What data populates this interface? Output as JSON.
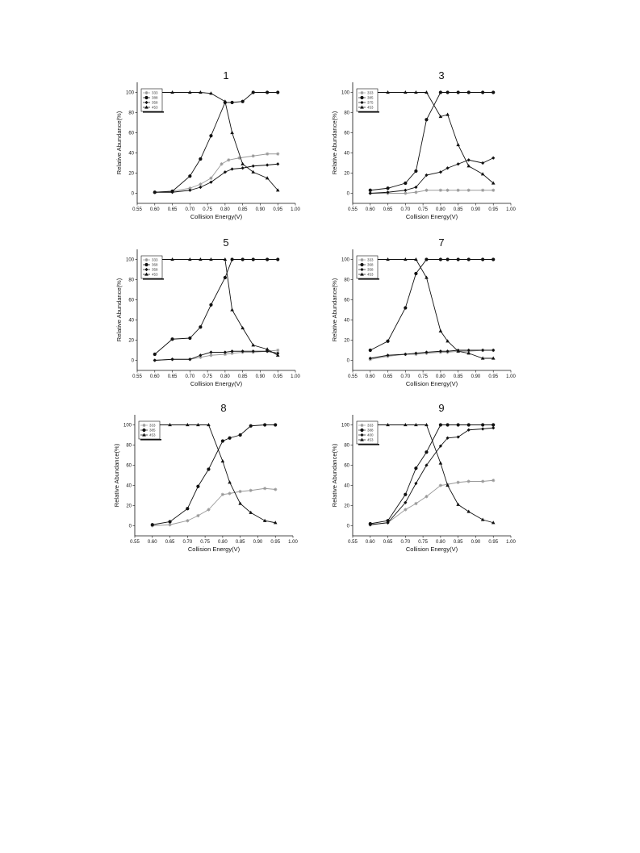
{
  "charts": [
    {
      "title": "1",
      "xlabel": "Collision Energy(V)",
      "ylabel": "Relative Abundance(%)",
      "xlim": [
        0.55,
        1.0
      ],
      "ylim": [
        -10,
        110
      ],
      "xticks": [
        "0.55",
        "0.60",
        "0.65",
        "0.70",
        "0.75",
        "0.80",
        "0.85",
        "0.90",
        "0.95",
        "1.00"
      ],
      "yticks": [
        "0",
        "20",
        "40",
        "60",
        "80",
        "100"
      ],
      "legend": [
        "333",
        "388",
        "358",
        "453"
      ],
      "series": [
        {
          "name": "333",
          "color": "#999999",
          "marker": "star",
          "x": [
            0.6,
            0.65,
            0.7,
            0.73,
            0.76,
            0.79,
            0.81,
            0.84,
            0.88,
            0.92,
            0.95
          ],
          "y": [
            1,
            2,
            5,
            9,
            15,
            29,
            33,
            35,
            37,
            39,
            39
          ]
        },
        {
          "name": "388",
          "color": "#111111",
          "marker": "circle",
          "x": [
            0.6,
            0.65,
            0.7,
            0.73,
            0.76,
            0.8,
            0.82,
            0.85,
            0.88,
            0.92,
            0.95
          ],
          "y": [
            1,
            2,
            17,
            34,
            57,
            90,
            90,
            91,
            100,
            100,
            100
          ]
        },
        {
          "name": "358",
          "color": "#111111",
          "marker": "diamond",
          "x": [
            0.6,
            0.65,
            0.7,
            0.73,
            0.76,
            0.8,
            0.82,
            0.85,
            0.88,
            0.92,
            0.95
          ],
          "y": [
            1,
            1,
            3,
            6,
            11,
            21,
            24,
            25,
            27,
            28,
            29
          ]
        },
        {
          "name": "453",
          "color": "#111111",
          "marker": "triangle",
          "x": [
            0.6,
            0.65,
            0.7,
            0.73,
            0.76,
            0.8,
            0.82,
            0.85,
            0.88,
            0.92,
            0.95
          ],
          "y": [
            100,
            100,
            100,
            100,
            99,
            91,
            60,
            29,
            21,
            15,
            3
          ]
        }
      ]
    },
    {
      "title": "3",
      "xlabel": "Collision Energy(V)",
      "ylabel": "Relative Abundance(%)",
      "xlim": [
        0.55,
        1.0
      ],
      "ylim": [
        -10,
        110
      ],
      "xticks": [
        "0.55",
        "0.60",
        "0.65",
        "0.70",
        "0.75",
        "0.80",
        "0.85",
        "0.90",
        "0.95",
        "1.00"
      ],
      "yticks": [
        "0",
        "20",
        "40",
        "60",
        "80",
        "100"
      ],
      "legend": [
        "333",
        "385",
        "375",
        "453"
      ],
      "series": [
        {
          "name": "333",
          "color": "#999999",
          "marker": "star",
          "x": [
            0.6,
            0.65,
            0.7,
            0.73,
            0.76,
            0.8,
            0.82,
            0.85,
            0.88,
            0.92,
            0.95
          ],
          "y": [
            0,
            0,
            0,
            1,
            3,
            3,
            3,
            3,
            3,
            3,
            3
          ]
        },
        {
          "name": "385",
          "color": "#111111",
          "marker": "circle",
          "x": [
            0.6,
            0.65,
            0.7,
            0.73,
            0.76,
            0.8,
            0.82,
            0.85,
            0.88,
            0.92,
            0.95
          ],
          "y": [
            3,
            5,
            10,
            22,
            73,
            100,
            100,
            100,
            100,
            100,
            100
          ]
        },
        {
          "name": "375",
          "color": "#111111",
          "marker": "diamond",
          "x": [
            0.6,
            0.65,
            0.7,
            0.73,
            0.76,
            0.8,
            0.82,
            0.85,
            0.88,
            0.92,
            0.95
          ],
          "y": [
            0,
            1,
            3,
            6,
            18,
            21,
            25,
            29,
            33,
            30,
            35
          ]
        },
        {
          "name": "453",
          "color": "#111111",
          "marker": "triangle",
          "x": [
            0.6,
            0.65,
            0.7,
            0.73,
            0.76,
            0.8,
            0.82,
            0.85,
            0.88,
            0.92,
            0.95
          ],
          "y": [
            100,
            100,
            100,
            100,
            100,
            76,
            78,
            48,
            27,
            19,
            10
          ]
        }
      ]
    },
    {
      "title": "5",
      "xlabel": "Collision Energy(V)",
      "ylabel": "Relative Abundance(%)",
      "xlim": [
        0.55,
        1.0
      ],
      "ylim": [
        -10,
        110
      ],
      "xticks": [
        "0.55",
        "0.60",
        "0.65",
        "0.70",
        "0.75",
        "0.80",
        "0.85",
        "0.90",
        "0.95",
        "1.00"
      ],
      "yticks": [
        "0",
        "20",
        "40",
        "60",
        "80",
        "100"
      ],
      "legend": [
        "333",
        "368",
        "358",
        "453"
      ],
      "series": [
        {
          "name": "333",
          "color": "#999999",
          "marker": "star",
          "x": [
            0.6,
            0.65,
            0.7,
            0.73,
            0.76,
            0.8,
            0.82,
            0.85,
            0.88,
            0.92,
            0.95
          ],
          "y": [
            0,
            1,
            1,
            3,
            5,
            6,
            7,
            8,
            8,
            9,
            10
          ]
        },
        {
          "name": "368",
          "color": "#111111",
          "marker": "circle",
          "x": [
            0.6,
            0.65,
            0.7,
            0.73,
            0.76,
            0.8,
            0.82,
            0.85,
            0.88,
            0.92,
            0.95
          ],
          "y": [
            6,
            21,
            22,
            33,
            55,
            82,
            100,
            100,
            100,
            100,
            100
          ]
        },
        {
          "name": "358",
          "color": "#111111",
          "marker": "diamond",
          "x": [
            0.6,
            0.65,
            0.7,
            0.73,
            0.76,
            0.8,
            0.82,
            0.85,
            0.88,
            0.92,
            0.95
          ],
          "y": [
            0,
            1,
            1,
            5,
            8,
            8,
            9,
            9,
            9,
            9,
            7
          ]
        },
        {
          "name": "453",
          "color": "#111111",
          "marker": "triangle",
          "x": [
            0.6,
            0.65,
            0.7,
            0.73,
            0.76,
            0.8,
            0.82,
            0.85,
            0.88,
            0.92,
            0.95
          ],
          "y": [
            100,
            100,
            100,
            100,
            100,
            100,
            50,
            32,
            15,
            11,
            5
          ]
        }
      ]
    },
    {
      "title": "7",
      "xlabel": "Collision Energy(V)",
      "ylabel": "Relative Abundance(%)",
      "xlim": [
        0.55,
        1.0
      ],
      "ylim": [
        -10,
        110
      ],
      "xticks": [
        "0.55",
        "0.60",
        "0.65",
        "0.70",
        "0.75",
        "0.80",
        "0.85",
        "0.90",
        "0.95",
        "1.00"
      ],
      "yticks": [
        "0",
        "20",
        "40",
        "60",
        "80",
        "100"
      ],
      "legend": [
        "333",
        "368",
        "358",
        "453"
      ],
      "series": [
        {
          "name": "333",
          "color": "#999999",
          "marker": "star",
          "x": [
            0.6,
            0.65,
            0.7,
            0.73,
            0.76,
            0.8,
            0.82,
            0.85,
            0.88,
            0.92,
            0.95
          ],
          "y": [
            1,
            4,
            6,
            6,
            7,
            8,
            8,
            9,
            9,
            10,
            10
          ]
        },
        {
          "name": "368",
          "color": "#111111",
          "marker": "circle",
          "x": [
            0.6,
            0.65,
            0.7,
            0.73,
            0.76,
            0.8,
            0.82,
            0.85,
            0.88,
            0.92,
            0.95
          ],
          "y": [
            10,
            19,
            52,
            86,
            100,
            100,
            100,
            100,
            100,
            100,
            100
          ]
        },
        {
          "name": "358",
          "color": "#111111",
          "marker": "diamond",
          "x": [
            0.6,
            0.65,
            0.7,
            0.73,
            0.76,
            0.8,
            0.82,
            0.85,
            0.88,
            0.92,
            0.95
          ],
          "y": [
            2,
            5,
            6,
            7,
            8,
            9,
            9,
            10,
            10,
            10,
            10
          ]
        },
        {
          "name": "453",
          "color": "#111111",
          "marker": "triangle",
          "x": [
            0.6,
            0.65,
            0.7,
            0.73,
            0.76,
            0.8,
            0.82,
            0.85,
            0.88,
            0.92,
            0.95
          ],
          "y": [
            100,
            100,
            100,
            100,
            82,
            29,
            19,
            9,
            7,
            2,
            2
          ]
        }
      ]
    },
    {
      "title": "8",
      "xlabel": "Collision Energy(V)",
      "ylabel": "Relative Abundance(%)",
      "xlim": [
        0.55,
        1.0
      ],
      "ylim": [
        -10,
        110
      ],
      "xticks": [
        "0.55",
        "0.60",
        "0.65",
        "0.70",
        "0.75",
        "0.80",
        "0.85",
        "0.90",
        "0.95",
        "1.00"
      ],
      "yticks": [
        "0",
        "20",
        "40",
        "60",
        "80",
        "100"
      ],
      "legend": [
        "333",
        "385",
        "453"
      ],
      "series": [
        {
          "name": "333",
          "color": "#999999",
          "marker": "star",
          "x": [
            0.6,
            0.65,
            0.7,
            0.73,
            0.76,
            0.8,
            0.82,
            0.85,
            0.88,
            0.92,
            0.95
          ],
          "y": [
            0,
            1,
            5,
            10,
            16,
            31,
            32,
            34,
            35,
            37,
            36
          ]
        },
        {
          "name": "385",
          "color": "#111111",
          "marker": "circle",
          "x": [
            0.6,
            0.65,
            0.7,
            0.73,
            0.76,
            0.8,
            0.82,
            0.85,
            0.88,
            0.92,
            0.95
          ],
          "y": [
            1,
            4,
            17,
            39,
            56,
            84,
            87,
            90,
            99,
            100,
            100
          ]
        },
        {
          "name": "453",
          "color": "#111111",
          "marker": "triangle",
          "x": [
            0.6,
            0.65,
            0.7,
            0.73,
            0.76,
            0.8,
            0.82,
            0.85,
            0.88,
            0.92,
            0.95
          ],
          "y": [
            100,
            100,
            100,
            100,
            100,
            64,
            43,
            22,
            13,
            5,
            3
          ]
        }
      ]
    },
    {
      "title": "9",
      "xlabel": "Collision Energy(V)",
      "ylabel": "Relative Abundance(%)",
      "xlim": [
        0.55,
        1.0
      ],
      "ylim": [
        -10,
        110
      ],
      "xticks": [
        "0.55",
        "0.60",
        "0.65",
        "0.70",
        "0.75",
        "0.80",
        "0.85",
        "0.90",
        "0.95",
        "1.00"
      ],
      "yticks": [
        "0",
        "20",
        "40",
        "60",
        "80",
        "100"
      ],
      "legend": [
        "333",
        "388",
        "400",
        "453"
      ],
      "series": [
        {
          "name": "333",
          "color": "#999999",
          "marker": "star",
          "x": [
            0.6,
            0.65,
            0.7,
            0.73,
            0.76,
            0.8,
            0.82,
            0.85,
            0.88,
            0.92,
            0.95
          ],
          "y": [
            1,
            3,
            16,
            22,
            29,
            40,
            41,
            43,
            44,
            44,
            45
          ]
        },
        {
          "name": "388",
          "color": "#111111",
          "marker": "circle",
          "x": [
            0.6,
            0.65,
            0.7,
            0.73,
            0.76,
            0.8,
            0.82,
            0.85,
            0.88,
            0.92,
            0.95
          ],
          "y": [
            2,
            5,
            31,
            57,
            73,
            100,
            100,
            100,
            100,
            100,
            100
          ]
        },
        {
          "name": "400",
          "color": "#111111",
          "marker": "diamond",
          "x": [
            0.6,
            0.65,
            0.7,
            0.73,
            0.76,
            0.8,
            0.82,
            0.85,
            0.88,
            0.92,
            0.95
          ],
          "y": [
            1,
            3,
            23,
            42,
            60,
            79,
            87,
            88,
            95,
            96,
            97
          ]
        },
        {
          "name": "453",
          "color": "#111111",
          "marker": "triangle",
          "x": [
            0.6,
            0.65,
            0.7,
            0.73,
            0.76,
            0.8,
            0.82,
            0.85,
            0.88,
            0.92,
            0.95
          ],
          "y": [
            100,
            100,
            100,
            100,
            100,
            62,
            40,
            21,
            14,
            6,
            3
          ]
        }
      ]
    }
  ],
  "chart_data": [
    {
      "type": "line",
      "title": "1",
      "xlabel": "Collision Energy(V)",
      "ylabel": "Relative Abundance(%)",
      "xlim": [
        0.55,
        1.0
      ],
      "ylim": [
        -10,
        110
      ]
    },
    {
      "type": "line",
      "title": "3",
      "xlabel": "Collision Energy(V)",
      "ylabel": "Relative Abundance(%)",
      "xlim": [
        0.55,
        1.0
      ],
      "ylim": [
        -10,
        110
      ]
    },
    {
      "type": "line",
      "title": "5",
      "xlabel": "Collision Energy(V)",
      "ylabel": "Relative Abundance(%)",
      "xlim": [
        0.55,
        1.0
      ],
      "ylim": [
        -10,
        110
      ]
    },
    {
      "type": "line",
      "title": "7",
      "xlabel": "Collision Energy(V)",
      "ylabel": "Relative Abundance(%)",
      "xlim": [
        0.55,
        1.0
      ],
      "ylim": [
        -10,
        110
      ]
    },
    {
      "type": "line",
      "title": "8",
      "xlabel": "Collision Energy(V)",
      "ylabel": "Relative Abundance(%)",
      "xlim": [
        0.55,
        1.0
      ],
      "ylim": [
        -10,
        110
      ]
    },
    {
      "type": "line",
      "title": "9",
      "xlabel": "Collision Energy(V)",
      "ylabel": "Relative Abundance(%)",
      "xlim": [
        0.55,
        1.0
      ],
      "ylim": [
        -10,
        110
      ]
    }
  ]
}
